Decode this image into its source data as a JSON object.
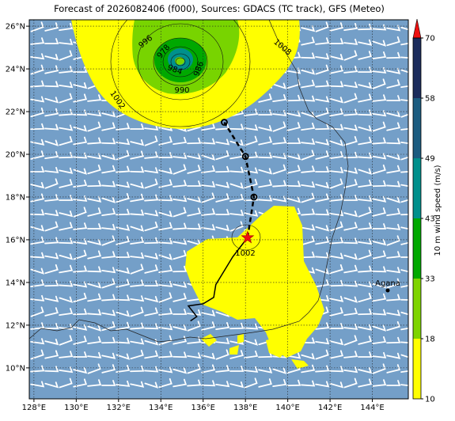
{
  "title": "Forecast of 2026082406 (f000), Sources: GDACS (TC track), GFS (Meteo)",
  "map": {
    "xlim": [
      127.78,
      145.7
    ],
    "ylim": [
      8.55,
      26.3
    ],
    "xticks": [
      {
        "value": 128,
        "label": "128°E"
      },
      {
        "value": 130,
        "label": "130°E"
      },
      {
        "value": 132,
        "label": "132°E"
      },
      {
        "value": 134,
        "label": "134°E"
      },
      {
        "value": 136,
        "label": "136°E"
      },
      {
        "value": 138,
        "label": "138°E"
      },
      {
        "value": 140,
        "label": "140°E"
      },
      {
        "value": 142,
        "label": "142°E"
      },
      {
        "value": 144,
        "label": "144°E"
      }
    ],
    "yticks": [
      {
        "value": 10,
        "label": "10°N"
      },
      {
        "value": 12,
        "label": "12°N"
      },
      {
        "value": 14,
        "label": "14°N"
      },
      {
        "value": 16,
        "label": "16°N"
      },
      {
        "value": 18,
        "label": "18°N"
      },
      {
        "value": 20,
        "label": "20°N"
      },
      {
        "value": 22,
        "label": "22°N"
      },
      {
        "value": 24,
        "label": "24°N"
      },
      {
        "value": 26,
        "label": "26°N"
      }
    ],
    "contour_labels": [
      "996",
      "978",
      "984",
      "986",
      "990",
      "1002",
      "1008",
      "1002"
    ],
    "place": "Agana",
    "track": {
      "current": {
        "lon": 138.1,
        "lat": 16.1
      },
      "forecast": [
        {
          "lon": 138.4,
          "lat": 18.0
        },
        {
          "lon": 138.0,
          "lat": 19.9
        },
        {
          "lon": 137.0,
          "lat": 21.5
        }
      ],
      "past": [
        {
          "lon": 138.1,
          "lat": 16.1
        },
        {
          "lon": 137.4,
          "lat": 15.2
        },
        {
          "lon": 136.6,
          "lat": 13.9
        },
        {
          "lon": 136.5,
          "lat": 13.3
        },
        {
          "lon": 136.0,
          "lat": 13.0
        },
        {
          "lon": 135.3,
          "lat": 12.9
        },
        {
          "lon": 135.7,
          "lat": 12.4
        },
        {
          "lon": 135.4,
          "lat": 12.2
        }
      ]
    }
  },
  "colorbar": {
    "label": "10 m wind speed (m/s)",
    "ticks": [
      10,
      18,
      33,
      43,
      49,
      58,
      70
    ],
    "colors": [
      "#ffff00",
      "#7fd400",
      "#00a800",
      "#00908c",
      "#1c5c80",
      "#1c2c5c"
    ],
    "extend_color": "#ee1111"
  }
}
